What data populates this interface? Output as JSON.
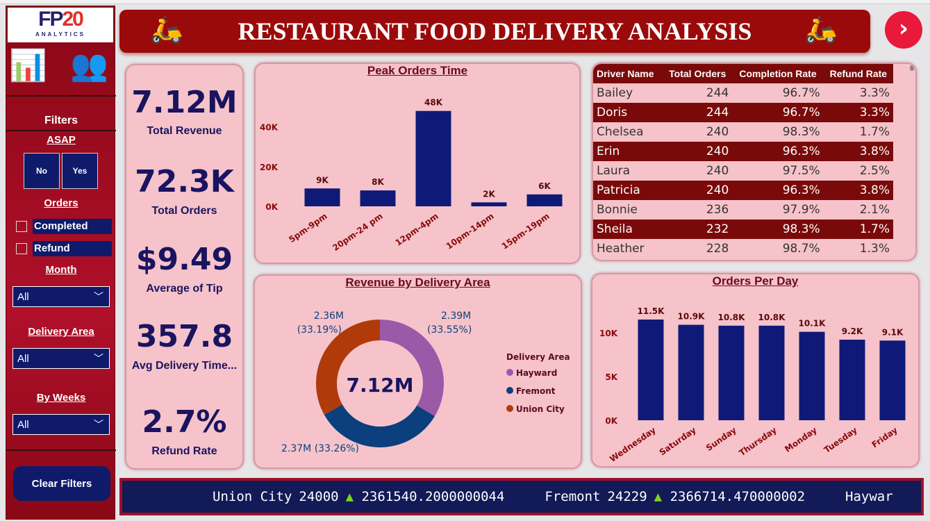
{
  "header": {
    "title": "RESTAURANT FOOD DELIVERY ANALYSIS"
  },
  "logo": {
    "main": "FP20",
    "sub": "ANALYTICS"
  },
  "sidebar": {
    "filters_title": "Filters",
    "asap_label": "ASAP",
    "asap_no": "No",
    "asap_yes": "Yes",
    "orders_label": "Orders",
    "orders_options": [
      "Completed",
      "Refund"
    ],
    "month_label": "Month",
    "month_value": "All",
    "area_label": "Delivery Area",
    "area_value": "All",
    "weeks_label": "By Weeks",
    "weeks_value": "All",
    "clear_label": "Clear Filters"
  },
  "kpis": [
    {
      "value": "7.12M",
      "label": "Total Revenue"
    },
    {
      "value": "72.3K",
      "label": "Total Orders"
    },
    {
      "value": "$9.49",
      "label": "Average of Tip"
    },
    {
      "value": "357.8",
      "label": "Avg Delivery Time..."
    },
    {
      "value": "2.7%",
      "label": "Refund Rate"
    }
  ],
  "drivers": {
    "columns": [
      "Driver Name",
      "Total Orders",
      "Completion Rate",
      "Refund Rate"
    ],
    "rows": [
      [
        "Bailey",
        "244",
        "96.7%",
        "3.3%"
      ],
      [
        "Doris",
        "244",
        "96.7%",
        "3.3%"
      ],
      [
        "Chelsea",
        "240",
        "98.3%",
        "1.7%"
      ],
      [
        "Erin",
        "240",
        "96.3%",
        "3.8%"
      ],
      [
        "Laura",
        "240",
        "97.5%",
        "2.5%"
      ],
      [
        "Patricia",
        "240",
        "96.3%",
        "3.8%"
      ],
      [
        "Bonnie",
        "236",
        "97.9%",
        "2.1%"
      ],
      [
        "Sheila",
        "232",
        "98.3%",
        "1.7%"
      ],
      [
        "Heather",
        "228",
        "98.7%",
        "1.3%"
      ]
    ]
  },
  "ticker": {
    "items": [
      {
        "area": "Union City",
        "orders": "24000",
        "revenue": "2361540.2000000044"
      },
      {
        "area": "Fremont",
        "orders": "24229",
        "revenue": "2366714.470000002"
      },
      {
        "area": "Haywar",
        "orders": "",
        "revenue": ""
      }
    ]
  },
  "chart_data": [
    {
      "type": "bar",
      "title": "Peak Orders Time",
      "categories": [
        "5pm-9pm",
        "20pm-24 pm",
        "12pm-4pm",
        "10pm-14pm",
        "15pm-19pm"
      ],
      "values": [
        9000,
        8000,
        48000,
        2000,
        6000
      ],
      "labels": [
        "9K",
        "8K",
        "48K",
        "2K",
        "6K"
      ],
      "yticks": [
        "0K",
        "20K",
        "40K"
      ],
      "ylim": [
        0,
        50000
      ],
      "color": "#0f1a78"
    },
    {
      "type": "pie",
      "title": "Revenue by Delivery Area",
      "center_label": "7.12M",
      "legend_title": "Delivery Area",
      "categories": [
        "Hayward",
        "Fremont",
        "Union City"
      ],
      "values": [
        2.39,
        2.37,
        2.36
      ],
      "labels": [
        "2.39M (33.55%)",
        "2.37M (33.26%)",
        "2.36M (33.19%)"
      ],
      "colors": [
        "#9b59a8",
        "#0b3f7e",
        "#b03a0a"
      ],
      "legend": "right"
    },
    {
      "type": "bar",
      "title": "Orders Per Day",
      "categories": [
        "Wednesday",
        "Saturday",
        "Sunday",
        "Thursday",
        "Monday",
        "Tuesday",
        "Friday"
      ],
      "values": [
        11500,
        10900,
        10800,
        10800,
        10100,
        9200,
        9100
      ],
      "labels": [
        "11.5K",
        "10.9K",
        "10.8K",
        "10.8K",
        "10.1K",
        "9.2K",
        "9.1K"
      ],
      "yticks": [
        "0K",
        "5K",
        "10K"
      ],
      "ylim": [
        0,
        11500
      ],
      "color": "#0f1a78"
    }
  ]
}
